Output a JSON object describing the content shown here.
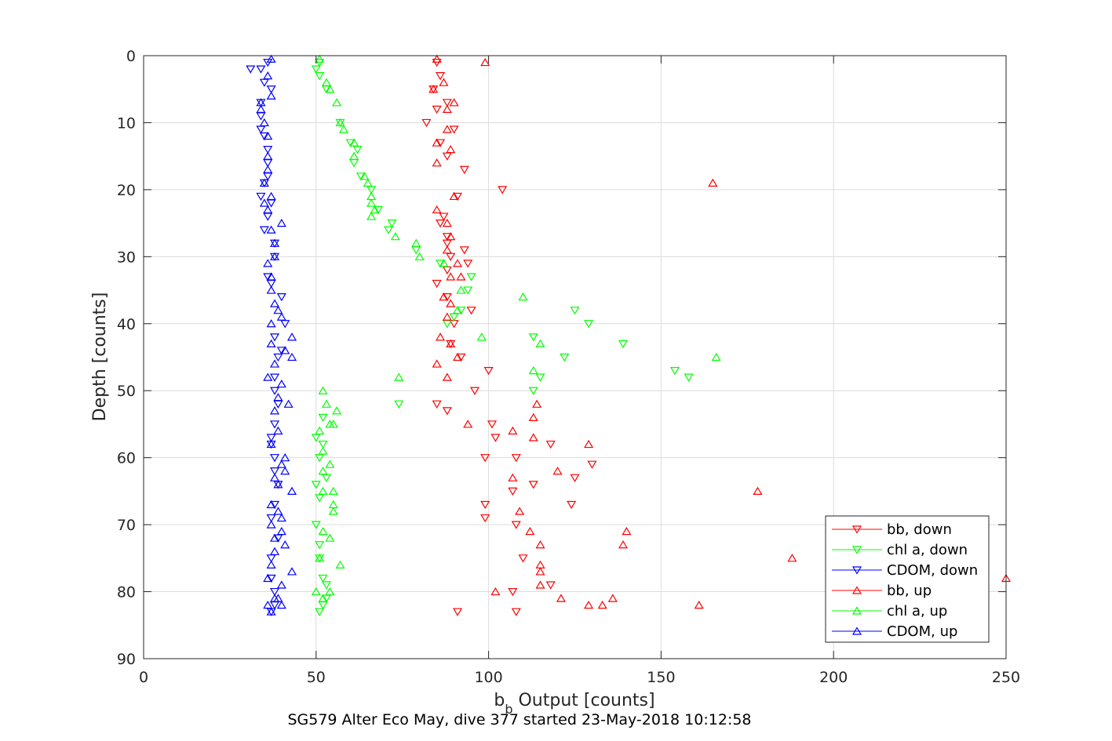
{
  "chart_data": {
    "type": "scatter",
    "xlabel_main": "b",
    "xlabel_sub": "b",
    "xlabel_rest": " Output [counts]",
    "ylabel": "Depth [counts]",
    "footer": "SG579 Alter Eco May, dive 377 started 23-May-2018 10:12:58",
    "xlim": [
      0,
      250
    ],
    "ylim": [
      0,
      90
    ],
    "y_reversed": true,
    "grid": true,
    "legend_position": "bottom-right",
    "x_ticks": [
      "0",
      "50",
      "100",
      "150",
      "200",
      "250"
    ],
    "y_ticks": [
      "0",
      "10",
      "20",
      "30",
      "40",
      "50",
      "60",
      "70",
      "80",
      "90"
    ],
    "series": [
      {
        "name": "bb, down",
        "color": "#ff0000",
        "marker": "triangle-down",
        "points": [
          [
            85,
            1
          ],
          [
            86,
            3
          ],
          [
            84,
            5
          ],
          [
            88,
            7
          ],
          [
            85,
            8
          ],
          [
            82,
            10
          ],
          [
            90,
            11
          ],
          [
            86,
            13
          ],
          [
            88,
            15
          ],
          [
            93,
            17
          ],
          [
            104,
            20
          ],
          [
            91,
            21
          ],
          [
            87,
            24
          ],
          [
            86,
            25
          ],
          [
            88,
            27
          ],
          [
            88,
            28
          ],
          [
            93,
            29
          ],
          [
            89,
            30
          ],
          [
            94,
            31
          ],
          [
            88,
            32
          ],
          [
            85,
            34
          ],
          [
            88,
            36
          ],
          [
            95,
            38
          ],
          [
            90,
            40
          ],
          [
            89,
            43
          ],
          [
            100,
            47
          ],
          [
            92,
            45
          ],
          [
            96,
            50
          ],
          [
            88,
            53
          ],
          [
            85,
            52
          ],
          [
            101,
            55
          ],
          [
            102,
            57
          ],
          [
            99,
            60
          ],
          [
            108,
            60
          ],
          [
            113,
            64
          ],
          [
            107,
            65
          ],
          [
            99,
            67
          ],
          [
            99,
            69
          ],
          [
            108,
            70
          ],
          [
            124,
            67
          ],
          [
            130,
            61
          ],
          [
            125,
            63
          ],
          [
            118,
            58
          ],
          [
            110,
            75
          ],
          [
            107,
            80
          ],
          [
            118,
            79
          ],
          [
            108,
            83
          ],
          [
            91,
            83
          ]
        ]
      },
      {
        "name": "chl a, down",
        "color": "#00ff00",
        "marker": "triangle-down",
        "points": [
          [
            51,
            1
          ],
          [
            50,
            2
          ],
          [
            51,
            3
          ],
          [
            53,
            5
          ],
          [
            57,
            10
          ],
          [
            60,
            13
          ],
          [
            62,
            14
          ],
          [
            61,
            16
          ],
          [
            63,
            18
          ],
          [
            66,
            20
          ],
          [
            68,
            23
          ],
          [
            72,
            25
          ],
          [
            71,
            26
          ],
          [
            79,
            29
          ],
          [
            86,
            31
          ],
          [
            95,
            33
          ],
          [
            94,
            35
          ],
          [
            90,
            39
          ],
          [
            88,
            40
          ],
          [
            92,
            38
          ],
          [
            113,
            42
          ],
          [
            125,
            38
          ],
          [
            129,
            40
          ],
          [
            139,
            43
          ],
          [
            122,
            45
          ],
          [
            113,
            50
          ],
          [
            115,
            48
          ],
          [
            154,
            47
          ],
          [
            158,
            48
          ],
          [
            74,
            52
          ],
          [
            52,
            54
          ],
          [
            50,
            57
          ],
          [
            52,
            58
          ],
          [
            51,
            60
          ],
          [
            50,
            64
          ],
          [
            53,
            63
          ],
          [
            51,
            66
          ],
          [
            50,
            70
          ],
          [
            51,
            73
          ],
          [
            51,
            75
          ],
          [
            52,
            78
          ],
          [
            53,
            81
          ],
          [
            51,
            83
          ],
          [
            52,
            82
          ],
          [
            53,
            79
          ]
        ]
      },
      {
        "name": "CDOM, down",
        "color": "#0000ff",
        "marker": "triangle-down",
        "points": [
          [
            36,
            1
          ],
          [
            31,
            2
          ],
          [
            34,
            2
          ],
          [
            35,
            4
          ],
          [
            37,
            5
          ],
          [
            34,
            7
          ],
          [
            34,
            9
          ],
          [
            34,
            11
          ],
          [
            35,
            12
          ],
          [
            36,
            14
          ],
          [
            36,
            16
          ],
          [
            36,
            18
          ],
          [
            35,
            19
          ],
          [
            34,
            21
          ],
          [
            37,
            22
          ],
          [
            36,
            24
          ],
          [
            35,
            26
          ],
          [
            38,
            28
          ],
          [
            38,
            30
          ],
          [
            36,
            33
          ],
          [
            37,
            34
          ],
          [
            40,
            36
          ],
          [
            41,
            40
          ],
          [
            38,
            42
          ],
          [
            40,
            44
          ],
          [
            39,
            45
          ],
          [
            38,
            48
          ],
          [
            38,
            50
          ],
          [
            39,
            52
          ],
          [
            38,
            55
          ],
          [
            37,
            57
          ],
          [
            37,
            58
          ],
          [
            38,
            60
          ],
          [
            38,
            62
          ],
          [
            39,
            64
          ],
          [
            38,
            67
          ],
          [
            37,
            69
          ],
          [
            39,
            72
          ],
          [
            37,
            75
          ],
          [
            37,
            78
          ],
          [
            38,
            80
          ],
          [
            38,
            82
          ],
          [
            37,
            83
          ]
        ]
      },
      {
        "name": "bb, up",
        "color": "#ff0000",
        "marker": "triangle-up",
        "points": [
          [
            85,
            0.5
          ],
          [
            99,
            1
          ],
          [
            87,
            4
          ],
          [
            84,
            5
          ],
          [
            90,
            7
          ],
          [
            88,
            8
          ],
          [
            88,
            11
          ],
          [
            85,
            13
          ],
          [
            89,
            14
          ],
          [
            85,
            16
          ],
          [
            165,
            19
          ],
          [
            90,
            21
          ],
          [
            85,
            23
          ],
          [
            88,
            25
          ],
          [
            89,
            27
          ],
          [
            88,
            29
          ],
          [
            91,
            31
          ],
          [
            89,
            33
          ],
          [
            92,
            33
          ],
          [
            87,
            36
          ],
          [
            89,
            37
          ],
          [
            88,
            39
          ],
          [
            86,
            42
          ],
          [
            89,
            43
          ],
          [
            91,
            45
          ],
          [
            85,
            46
          ],
          [
            88,
            48
          ],
          [
            94,
            55
          ],
          [
            107,
            56
          ],
          [
            113,
            54
          ],
          [
            114,
            52
          ],
          [
            113,
            57
          ],
          [
            129,
            58
          ],
          [
            120,
            62
          ],
          [
            107,
            63
          ],
          [
            178,
            65
          ],
          [
            109,
            68
          ],
          [
            112,
            71
          ],
          [
            115,
            73
          ],
          [
            139,
            73
          ],
          [
            140,
            71
          ],
          [
            188,
            75
          ],
          [
            115,
            77
          ],
          [
            115,
            79
          ],
          [
            102,
            80
          ],
          [
            121,
            81
          ],
          [
            129,
            82
          ],
          [
            133,
            82
          ],
          [
            136,
            81
          ],
          [
            161,
            82
          ],
          [
            250,
            78
          ],
          [
            115,
            76
          ]
        ]
      },
      {
        "name": "chl a, up",
        "color": "#00ff00",
        "marker": "triangle-up",
        "points": [
          [
            51,
            0.5
          ],
          [
            53,
            4
          ],
          [
            54,
            5
          ],
          [
            56,
            7
          ],
          [
            57,
            10
          ],
          [
            58,
            11
          ],
          [
            61,
            13
          ],
          [
            61,
            15
          ],
          [
            64,
            18
          ],
          [
            65,
            19
          ],
          [
            66,
            21
          ],
          [
            66,
            22
          ],
          [
            67,
            23
          ],
          [
            66,
            24
          ],
          [
            73,
            27
          ],
          [
            79,
            28
          ],
          [
            80,
            30
          ],
          [
            87,
            31
          ],
          [
            92,
            35
          ],
          [
            110,
            36
          ],
          [
            91,
            38
          ],
          [
            98,
            42
          ],
          [
            113,
            47
          ],
          [
            115,
            43
          ],
          [
            166,
            45
          ],
          [
            74,
            48
          ],
          [
            52,
            50
          ],
          [
            53,
            52
          ],
          [
            56,
            53
          ],
          [
            55,
            55
          ],
          [
            54,
            55
          ],
          [
            51,
            56
          ],
          [
            52,
            59
          ],
          [
            54,
            61
          ],
          [
            52,
            62
          ],
          [
            55,
            65
          ],
          [
            52,
            65
          ],
          [
            55,
            67
          ],
          [
            55,
            68
          ],
          [
            52,
            71
          ],
          [
            54,
            72
          ],
          [
            57,
            76
          ],
          [
            51,
            75
          ],
          [
            50,
            80
          ],
          [
            52,
            81
          ],
          [
            54,
            80
          ]
        ]
      },
      {
        "name": "CDOM, up",
        "color": "#0000ff",
        "marker": "triangle-up",
        "points": [
          [
            37,
            0.5
          ],
          [
            36,
            3
          ],
          [
            37,
            6
          ],
          [
            34,
            7
          ],
          [
            34,
            8
          ],
          [
            35,
            10
          ],
          [
            36,
            12
          ],
          [
            36,
            15
          ],
          [
            36,
            17
          ],
          [
            35,
            19
          ],
          [
            37,
            21
          ],
          [
            35,
            22
          ],
          [
            36,
            23
          ],
          [
            40,
            25
          ],
          [
            37,
            26
          ],
          [
            38,
            28
          ],
          [
            38,
            30
          ],
          [
            36,
            31
          ],
          [
            37,
            33
          ],
          [
            37,
            35
          ],
          [
            38,
            37
          ],
          [
            39,
            38
          ],
          [
            40,
            39
          ],
          [
            37,
            40
          ],
          [
            43,
            42
          ],
          [
            37,
            43
          ],
          [
            41,
            44
          ],
          [
            38,
            46
          ],
          [
            43,
            45
          ],
          [
            36,
            48
          ],
          [
            40,
            49
          ],
          [
            39,
            51
          ],
          [
            42,
            52
          ],
          [
            38,
            53
          ],
          [
            39,
            56
          ],
          [
            37,
            58
          ],
          [
            41,
            60
          ],
          [
            40,
            61
          ],
          [
            41,
            62
          ],
          [
            38,
            63
          ],
          [
            39,
            64
          ],
          [
            43,
            65
          ],
          [
            37,
            67
          ],
          [
            39,
            68
          ],
          [
            40,
            69
          ],
          [
            37,
            70
          ],
          [
            40,
            71
          ],
          [
            38,
            72
          ],
          [
            41,
            73
          ],
          [
            38,
            74
          ],
          [
            37,
            76
          ],
          [
            43,
            77
          ],
          [
            36,
            78
          ],
          [
            40,
            79
          ],
          [
            39,
            81
          ],
          [
            38,
            81
          ],
          [
            40,
            82
          ],
          [
            36,
            82
          ],
          [
            37,
            83
          ]
        ]
      }
    ]
  }
}
